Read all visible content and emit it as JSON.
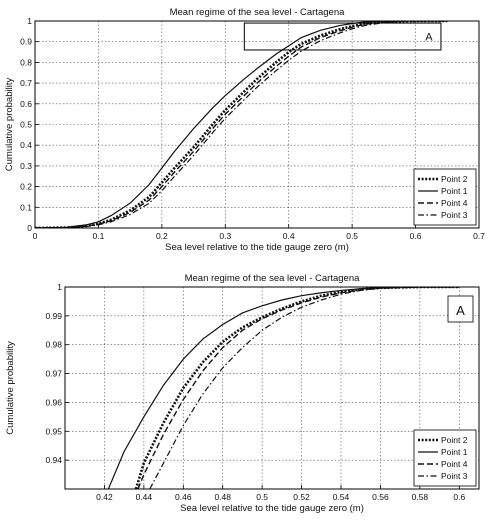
{
  "chart_data": [
    {
      "type": "line",
      "title": "Mean regime of the sea level  - Cartagena",
      "xlabel": "Sea level relative to the tide gauge zero (m)",
      "ylabel": "Cumulative probability",
      "xlim": [
        0,
        0.7
      ],
      "ylim": [
        0,
        1
      ],
      "xticks": [
        "0",
        "0.1",
        "0.2",
        "0.3",
        "0.4",
        "0.5",
        "0.6",
        "0.7"
      ],
      "yticks": [
        "0",
        "0.1",
        "0.2",
        "0.3",
        "0.4",
        "0.5",
        "0.6",
        "0.7",
        "0.8",
        "0.9",
        "1"
      ],
      "grid": true,
      "legend_position": "bottom-right",
      "zoom_box": {
        "label": "A",
        "x": [
          0.33,
          0.64
        ],
        "y": [
          0.86,
          0.99
        ]
      },
      "series": [
        {
          "name": "Point 2",
          "style": "dotted",
          "x": [
            0,
            0.05,
            0.08,
            0.1,
            0.12,
            0.15,
            0.18,
            0.2,
            0.22,
            0.25,
            0.28,
            0.3,
            0.33,
            0.35,
            0.38,
            0.4,
            0.42,
            0.45,
            0.48,
            0.5,
            0.52,
            0.55,
            0.58,
            0.6,
            0.65
          ],
          "y": [
            0,
            0.002,
            0.01,
            0.02,
            0.04,
            0.085,
            0.15,
            0.22,
            0.29,
            0.39,
            0.5,
            0.57,
            0.66,
            0.72,
            0.8,
            0.85,
            0.89,
            0.93,
            0.96,
            0.975,
            0.988,
            0.996,
            0.999,
            1,
            1
          ]
        },
        {
          "name": "Point 1",
          "style": "solid",
          "x": [
            0,
            0.05,
            0.08,
            0.1,
            0.12,
            0.15,
            0.18,
            0.2,
            0.22,
            0.25,
            0.28,
            0.3,
            0.33,
            0.35,
            0.38,
            0.4,
            0.42,
            0.45,
            0.48,
            0.5,
            0.52,
            0.55,
            0.58,
            0.6,
            0.65
          ],
          "y": [
            0,
            0.003,
            0.015,
            0.03,
            0.06,
            0.12,
            0.21,
            0.29,
            0.37,
            0.48,
            0.58,
            0.64,
            0.72,
            0.77,
            0.84,
            0.88,
            0.92,
            0.955,
            0.978,
            0.988,
            0.995,
            0.999,
            1,
            1,
            1
          ]
        },
        {
          "name": "Point 4",
          "style": "dashed",
          "x": [
            0,
            0.05,
            0.08,
            0.1,
            0.12,
            0.15,
            0.18,
            0.2,
            0.22,
            0.25,
            0.28,
            0.3,
            0.33,
            0.35,
            0.38,
            0.4,
            0.42,
            0.45,
            0.48,
            0.5,
            0.52,
            0.55,
            0.58,
            0.6,
            0.65
          ],
          "y": [
            0,
            0.002,
            0.009,
            0.018,
            0.035,
            0.075,
            0.135,
            0.2,
            0.27,
            0.37,
            0.48,
            0.55,
            0.64,
            0.7,
            0.78,
            0.83,
            0.875,
            0.92,
            0.952,
            0.97,
            0.984,
            0.995,
            0.999,
            1,
            1
          ]
        },
        {
          "name": "Point 3",
          "style": "dashdot",
          "x": [
            0,
            0.05,
            0.08,
            0.1,
            0.12,
            0.15,
            0.18,
            0.2,
            0.22,
            0.25,
            0.28,
            0.3,
            0.33,
            0.35,
            0.38,
            0.4,
            0.42,
            0.45,
            0.48,
            0.5,
            0.52,
            0.55,
            0.58,
            0.6,
            0.65
          ],
          "y": [
            0,
            0.0015,
            0.007,
            0.015,
            0.03,
            0.065,
            0.12,
            0.18,
            0.25,
            0.35,
            0.46,
            0.53,
            0.62,
            0.68,
            0.76,
            0.81,
            0.855,
            0.905,
            0.942,
            0.962,
            0.978,
            0.992,
            0.998,
            1,
            1
          ]
        }
      ]
    },
    {
      "type": "line",
      "title": "Mean regime of the sea level  - Cartagena",
      "xlabel": "Sea level relative to the tide gauge zero (m)",
      "ylabel": "Cumulative probability",
      "xlim": [
        0.4,
        0.61
      ],
      "ylim": [
        0.93,
        1
      ],
      "xticks": [
        "0.42",
        "0.44",
        "0.46",
        "0.48",
        "0.5",
        "0.52",
        "0.54",
        "0.56",
        "0.58",
        "0.6"
      ],
      "yticks": [
        "0.94",
        "0.95",
        "0.96",
        "0.97",
        "0.98",
        "0.99",
        "1"
      ],
      "grid": true,
      "legend_position": "bottom-right",
      "panel_label": "A",
      "series": [
        {
          "name": "Point 2",
          "style": "dotted",
          "x": [
            0.436,
            0.44,
            0.45,
            0.46,
            0.47,
            0.48,
            0.49,
            0.5,
            0.51,
            0.52,
            0.53,
            0.54,
            0.55,
            0.56,
            0.58,
            0.6
          ],
          "y": [
            0.93,
            0.939,
            0.953,
            0.965,
            0.974,
            0.981,
            0.986,
            0.9895,
            0.9925,
            0.995,
            0.997,
            0.9983,
            0.9992,
            0.9997,
            1,
            1
          ]
        },
        {
          "name": "Point 1",
          "style": "solid",
          "x": [
            0.422,
            0.43,
            0.44,
            0.45,
            0.46,
            0.47,
            0.48,
            0.49,
            0.5,
            0.51,
            0.52,
            0.53,
            0.54,
            0.55,
            0.56,
            0.58,
            0.6
          ],
          "y": [
            0.93,
            0.943,
            0.955,
            0.966,
            0.975,
            0.982,
            0.987,
            0.991,
            0.9935,
            0.9955,
            0.997,
            0.998,
            0.9988,
            0.9994,
            0.9998,
            1,
            1
          ]
        },
        {
          "name": "Point 4",
          "style": "dashed",
          "x": [
            0.437,
            0.44,
            0.45,
            0.46,
            0.47,
            0.48,
            0.49,
            0.5,
            0.51,
            0.52,
            0.53,
            0.54,
            0.55,
            0.56,
            0.58,
            0.6
          ],
          "y": [
            0.93,
            0.935,
            0.949,
            0.961,
            0.971,
            0.979,
            0.985,
            0.989,
            0.992,
            0.9945,
            0.9965,
            0.998,
            0.999,
            0.9996,
            1,
            1
          ]
        },
        {
          "name": "Point 3",
          "style": "dashdot",
          "x": [
            0.443,
            0.45,
            0.46,
            0.47,
            0.48,
            0.49,
            0.5,
            0.51,
            0.52,
            0.53,
            0.54,
            0.55,
            0.56,
            0.58,
            0.6
          ],
          "y": [
            0.93,
            0.939,
            0.952,
            0.963,
            0.972,
            0.979,
            0.985,
            0.9895,
            0.993,
            0.9955,
            0.9975,
            0.9988,
            0.9996,
            1,
            1
          ]
        }
      ]
    }
  ]
}
